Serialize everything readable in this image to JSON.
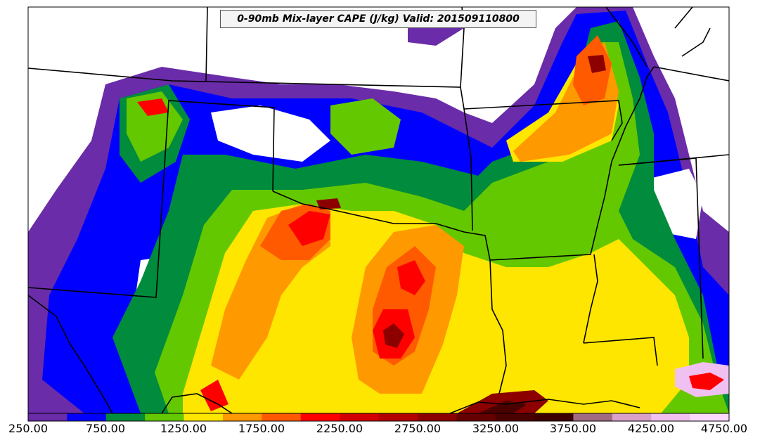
{
  "title": "0-90mb Mix-layer CAPE (J/kg) Valid: 201509110800",
  "colorbar": {
    "min": 250,
    "max": 4750,
    "step": 250,
    "colors": [
      "#6a2ca8",
      "#0000ff",
      "#008c3c",
      "#64c800",
      "#ffe600",
      "#ff9900",
      "#ff5a00",
      "#ff0000",
      "#d20000",
      "#b40000",
      "#8c0000",
      "#640000",
      "#4b0000",
      "#3c0000",
      "#a06a80",
      "#d9a0c8",
      "#f0c0f0",
      "#ffd9ff"
    ],
    "tick_labels": [
      "250.00",
      "750.00",
      "1250.00",
      "1750.00",
      "2250.00",
      "2750.00",
      "3250.00",
      "3750.00",
      "4250.00",
      "4750.00"
    ]
  },
  "chart_data": {
    "type": "heatmap",
    "title": "0-90mb Mix-layer CAPE (J/kg) Valid: 201509110800",
    "variable": "0-90mb Mix-layer CAPE",
    "units": "J/kg",
    "valid_time": "201509110800",
    "colorbar_range": [
      250,
      4750
    ],
    "colorbar_ticks": [
      250,
      750,
      1250,
      1750,
      2250,
      2750,
      3250,
      3750,
      4250,
      4750
    ]
  }
}
